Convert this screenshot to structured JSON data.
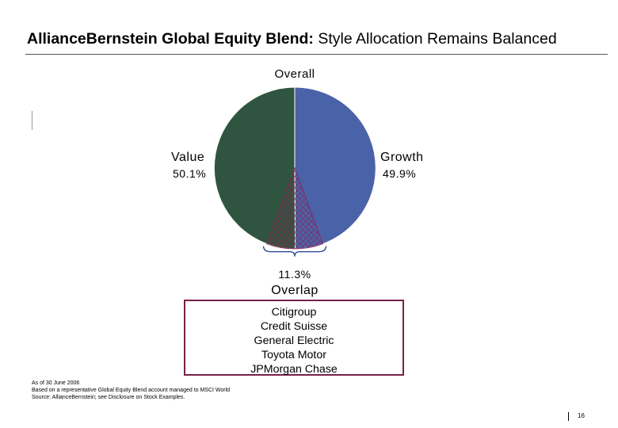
{
  "title": {
    "bold": "AllianceBernstein Global Equity Blend:",
    "rest": "Style Allocation Remains Balanced"
  },
  "chart_data": {
    "type": "pie",
    "title": "Overall",
    "slices": [
      {
        "name": "Growth",
        "value": 49.9,
        "label": "49.9%",
        "color": "#4a63a8"
      },
      {
        "name": "Value",
        "value": 50.1,
        "label": "50.1%",
        "color": "#2f5540"
      }
    ],
    "overlap": {
      "name": "Overlap",
      "value": 11.3,
      "label": "11.3%",
      "color": "#8b2252"
    }
  },
  "overlap_stocks": [
    "Citigroup",
    "Credit Suisse",
    "General Electric",
    "Toyota Motor",
    "JPMorgan Chase"
  ],
  "notes": [
    "As of 30 June 2006",
    "Based on a representative Global Equity Blend account managed to MSCI World",
    "Source: AllianceBernstein; see Disclosure on Stock Examples."
  ],
  "page_number": "16"
}
